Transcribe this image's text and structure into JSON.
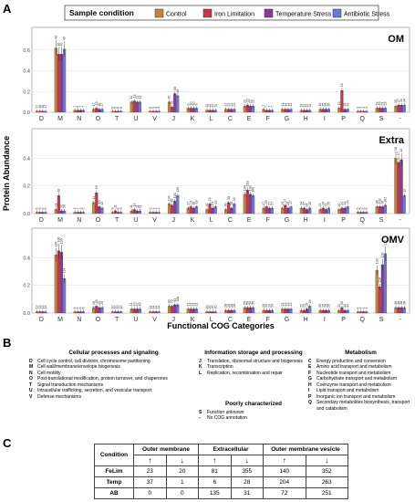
{
  "panel_labels": {
    "a": "A",
    "b": "B",
    "c": "C"
  },
  "chart_data": {
    "type": "bar",
    "legend_title": "Sample condition",
    "legend_position": "top",
    "xlabel": "Functional COG Categories",
    "ylabel": "Protein Abundance",
    "categories": [
      "D",
      "M",
      "N",
      "O",
      "T",
      "U",
      "V",
      "J",
      "K",
      "L",
      "C",
      "E",
      "F",
      "G",
      "H",
      "I",
      "P",
      "Q",
      "S",
      "-"
    ],
    "series": [
      {
        "name": "Control",
        "color": "#c0843a"
      },
      {
        "name": "Iron Limitation",
        "color": "#c4364e"
      },
      {
        "name": "Temperature Stress",
        "color": "#8a3a96"
      },
      {
        "name": "Antibiotic Stress",
        "color": "#6b78d6"
      }
    ],
    "facets": [
      {
        "name": "OM",
        "ylim": [
          0,
          0.8
        ],
        "yticks": [
          "0.0",
          "0.2",
          "0.4",
          "0.6"
        ],
        "values": [
          [
            0.01,
            0.01,
            0.01,
            0.01
          ],
          [
            0.62,
            0.56,
            0.56,
            0.61
          ],
          [
            0.02,
            0.02,
            0.02,
            0.02
          ],
          [
            0.03,
            0.04,
            0.03,
            0.03
          ],
          [
            0.01,
            0.01,
            0.01,
            0.01
          ],
          [
            0.1,
            0.11,
            0.1,
            0.1
          ],
          [
            0.01,
            0.01,
            0.01,
            0.01
          ],
          [
            0.1,
            0.05,
            0.18,
            0.16
          ],
          [
            0.04,
            0.04,
            0.04,
            0.04
          ],
          [
            0.02,
            0.02,
            0.02,
            0.02
          ],
          [
            0.03,
            0.03,
            0.03,
            0.03
          ],
          [
            0.06,
            0.07,
            0.06,
            0.06
          ],
          [
            0.03,
            0.02,
            0.02,
            0.02
          ],
          [
            0.03,
            0.03,
            0.03,
            0.03
          ],
          [
            0.02,
            0.02,
            0.02,
            0.02
          ],
          [
            0.03,
            0.03,
            0.03,
            0.03
          ],
          [
            0.04,
            0.21,
            0.03,
            0.03
          ],
          [
            0.01,
            0.01,
            0.01,
            0.01
          ],
          [
            0.04,
            0.04,
            0.04,
            0.04
          ],
          [
            0.06,
            0.07,
            0.07,
            0.07
          ]
        ],
        "counts": [
          [
            "17",
            "19",
            "16",
            "17"
          ],
          [
            "40",
            "36",
            "40",
            "40"
          ],
          [
            "7",
            "6",
            "7",
            "7"
          ],
          [
            "17",
            "19",
            "18",
            "17"
          ],
          [
            "6",
            "5",
            "6",
            "6"
          ],
          [
            "12",
            "13",
            "13",
            "12"
          ],
          [
            "5",
            "5",
            "5",
            "5"
          ],
          [
            "46",
            "52",
            "58",
            "68"
          ],
          [
            "9",
            "10",
            "10",
            "9"
          ],
          [
            "11",
            "12",
            "12",
            "11"
          ],
          [
            "22",
            "24",
            "22",
            "22"
          ],
          [
            "22",
            "22",
            "22",
            "22"
          ],
          [
            "7",
            "7",
            "7",
            "7"
          ],
          [
            "11",
            "11",
            "11",
            "11"
          ],
          [
            "13",
            "12",
            "12",
            "13"
          ],
          [
            "16",
            "15",
            "15",
            "16"
          ],
          [
            "13",
            "16",
            "13",
            "13"
          ],
          [
            "3",
            "3",
            "3",
            "3"
          ],
          [
            "52",
            "49",
            "51",
            "52"
          ],
          [
            "35",
            "37",
            "34",
            "34"
          ]
        ]
      },
      {
        "name": "Extra",
        "ylim": [
          0,
          0.6
        ],
        "yticks": [
          "0.0",
          "0.2",
          "0.4"
        ],
        "values": [
          [
            0.01,
            0.01,
            0.01,
            0.01
          ],
          [
            0.03,
            0.13,
            0.02,
            0.02
          ],
          [
            0.01,
            0.01,
            0.01,
            0.01
          ],
          [
            0.08,
            0.15,
            0.05,
            0.04
          ],
          [
            0.01,
            0.02,
            0.01,
            0.01
          ],
          [
            0.02,
            0.03,
            0.02,
            0.02
          ],
          [
            0.01,
            0.01,
            0.01,
            0.01
          ],
          [
            0.07,
            0.06,
            0.09,
            0.13
          ],
          [
            0.04,
            0.05,
            0.04,
            0.05
          ],
          [
            0.03,
            0.07,
            0.04,
            0.05
          ],
          [
            0.03,
            0.08,
            0.04,
            0.07
          ],
          [
            0.14,
            0.17,
            0.14,
            0.13
          ],
          [
            0.04,
            0.05,
            0.04,
            0.04
          ],
          [
            0.04,
            0.06,
            0.04,
            0.05
          ],
          [
            0.04,
            0.04,
            0.03,
            0.04
          ],
          [
            0.03,
            0.04,
            0.03,
            0.04
          ],
          [
            0.03,
            0.04,
            0.04,
            0.05
          ],
          [
            0.01,
            0.01,
            0.01,
            0.01
          ],
          [
            0.05,
            0.05,
            0.05,
            0.06
          ],
          [
            0.4,
            0.37,
            0.39,
            0.13
          ]
        ],
        "counts": [
          [
            "6",
            "5",
            "6",
            "6"
          ],
          [
            "31",
            "40",
            "32",
            "30"
          ],
          [
            "3",
            "2",
            "3",
            "3"
          ],
          [
            "14",
            "19",
            "13",
            "13"
          ],
          [
            "9",
            "11",
            "9",
            "9"
          ],
          [
            "11",
            "13",
            "11",
            "11"
          ],
          [
            "2",
            "2",
            "2",
            "2"
          ],
          [
            "104",
            "96",
            "103",
            "130"
          ],
          [
            "17",
            "21",
            "18",
            "19"
          ],
          [
            "20",
            "23",
            "21",
            "22"
          ],
          [
            "36",
            "38",
            "36",
            "33"
          ],
          [
            "104",
            "118",
            "102",
            "100"
          ],
          [
            "27",
            "29",
            "27",
            "27"
          ],
          [
            "25",
            "27",
            "25",
            "27"
          ],
          [
            "34",
            "37",
            "34",
            "35"
          ],
          [
            "23",
            "26",
            "23",
            "25"
          ],
          [
            "30",
            "34",
            "31",
            "33"
          ],
          [
            "5",
            "5",
            "5",
            "5"
          ],
          [
            "96",
            "102",
            "97",
            "102"
          ],
          [
            "18",
            "17",
            "12",
            "12"
          ]
        ]
      },
      {
        "name": "OMV",
        "ylim": [
          0,
          0.6
        ],
        "yticks": [
          "0.0",
          "0.2",
          "0.4"
        ],
        "values": [
          [
            0.01,
            0.01,
            0.01,
            0.01
          ],
          [
            0.42,
            0.45,
            0.44,
            0.25
          ],
          [
            0.01,
            0.01,
            0.01,
            0.01
          ],
          [
            0.04,
            0.05,
            0.04,
            0.04
          ],
          [
            0.01,
            0.01,
            0.01,
            0.01
          ],
          [
            0.03,
            0.03,
            0.03,
            0.03
          ],
          [
            0.01,
            0.01,
            0.01,
            0.01
          ],
          [
            0.05,
            0.05,
            0.06,
            0.06
          ],
          [
            0.03,
            0.03,
            0.03,
            0.03
          ],
          [
            0.01,
            0.01,
            0.01,
            0.01
          ],
          [
            0.02,
            0.02,
            0.02,
            0.02
          ],
          [
            0.04,
            0.04,
            0.04,
            0.04
          ],
          [
            0.02,
            0.02,
            0.02,
            0.02
          ],
          [
            0.03,
            0.03,
            0.03,
            0.03
          ],
          [
            0.02,
            0.02,
            0.03,
            0.05
          ],
          [
            0.02,
            0.02,
            0.02,
            0.02
          ],
          [
            0.02,
            0.04,
            0.02,
            0.02
          ],
          [
            0.01,
            0.01,
            0.01,
            0.01
          ],
          [
            0.31,
            0.19,
            0.35,
            0.43
          ],
          [
            0.04,
            0.04,
            0.04,
            0.04
          ]
        ],
        "counts": [
          [
            "13",
            "13",
            "13",
            "13"
          ],
          [
            "128",
            "100",
            "135",
            "114"
          ],
          [
            "6",
            "6",
            "6",
            "6"
          ],
          [
            "26",
            "29",
            "26",
            "26"
          ],
          [
            "10",
            "10",
            "10",
            "10"
          ],
          [
            "41",
            "43",
            "42",
            "40"
          ],
          [
            "11",
            "11",
            "11",
            "11"
          ],
          [
            "60",
            "70",
            "93",
            "108"
          ],
          [
            "21",
            "21",
            "21",
            "21"
          ],
          [
            "20",
            "20",
            "20",
            "20"
          ],
          [
            "28",
            "28",
            "28",
            "28"
          ],
          [
            "55",
            "58",
            "54",
            "55"
          ],
          [
            "19",
            "19",
            "19",
            "19"
          ],
          [
            "23",
            "23",
            "23",
            "23"
          ],
          [
            "22",
            "23",
            "24",
            "26"
          ],
          [
            "15",
            "15",
            "15",
            "15"
          ],
          [
            "32",
            "39",
            "32",
            "32"
          ],
          [
            "4",
            "4",
            "4",
            "4"
          ],
          [
            "130",
            "118",
            "126",
            "133"
          ],
          [
            "39",
            "38",
            "38",
            "38"
          ]
        ]
      }
    ]
  },
  "cog_legend": {
    "groups": [
      {
        "title": "Cellular processes and signaling",
        "items": [
          {
            "code": "D",
            "desc": "Cell cycle control, cell division, chromosome partitioning"
          },
          {
            "code": "M",
            "desc": "Cell wall/membrane/envelope biogenesis"
          },
          {
            "code": "N",
            "desc": "Cell motility"
          },
          {
            "code": "O",
            "desc": "Post-translational modification, protein turnover, and chaperones"
          },
          {
            "code": "T",
            "desc": "Signal transduction mechanisms"
          },
          {
            "code": "U",
            "desc": "Intracellular trafficking, secretion, and vesicular transport"
          },
          {
            "code": "V",
            "desc": "Defense mechanisms"
          }
        ]
      },
      {
        "title": "Information storage and processing",
        "items": [
          {
            "code": "J",
            "desc": "Translation, ribosomal structure and biogenesis"
          },
          {
            "code": "K",
            "desc": "Transcription"
          },
          {
            "code": "L",
            "desc": "Replication, recombination and repair"
          }
        ]
      },
      {
        "title": "Poorly characterized",
        "items": [
          {
            "code": "S",
            "desc": "Function unknown"
          },
          {
            "code": "-",
            "desc": "No COG annotation"
          }
        ]
      },
      {
        "title": "Metabolism",
        "items": [
          {
            "code": "C",
            "desc": "Energy production and conversion"
          },
          {
            "code": "E",
            "desc": "Amino acid transport and metabolism"
          },
          {
            "code": "F",
            "desc": "Nucleotide transport and metabolism"
          },
          {
            "code": "G",
            "desc": "Carbohydrate transport and metabolism"
          },
          {
            "code": "H",
            "desc": "Coenzyme transport and metabolism"
          },
          {
            "code": "I",
            "desc": "Lipid transport and metabolism"
          },
          {
            "code": "P",
            "desc": "Inorganic ion transport and metabolism"
          },
          {
            "code": "Q",
            "desc": "Secondary metabolites biosynthesis, transport and catabolism"
          }
        ]
      }
    ]
  },
  "table": {
    "header_condition": "Condition",
    "header_groups": [
      "Outer membrane",
      "Extracellular",
      "Outer membrane vesicle"
    ],
    "up_arrow": "↑",
    "down_arrow": "↓",
    "rows": [
      {
        "label": "FeLim",
        "values": [
          "23",
          "20",
          "81",
          "355",
          "140",
          "352"
        ]
      },
      {
        "label": "Temp",
        "values": [
          "37",
          "1",
          "6",
          "28",
          "204",
          "263"
        ]
      },
      {
        "label": "AB",
        "values": [
          "0",
          "0",
          "135",
          "31",
          "72",
          "251"
        ]
      }
    ]
  }
}
